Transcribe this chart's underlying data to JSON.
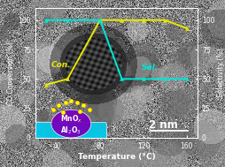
{
  "conv_x": [
    30,
    50,
    80,
    100,
    120,
    140,
    160
  ],
  "conv_y": [
    45,
    50,
    100,
    100,
    100,
    100,
    93
  ],
  "sel_x": [
    30,
    50,
    80,
    100,
    120,
    140,
    160
  ],
  "sel_y": [
    100,
    100,
    100,
    50,
    50,
    50,
    50
  ],
  "conv_color": "#e8e800",
  "sel_color": "#00e8d8",
  "conv_label": "Con.",
  "sel_label": "Sel.",
  "xlabel": "Temperature (°C)",
  "ylabel_left": "CO Conversion (%)",
  "ylabel_right": "Selectivity (%)",
  "xlim": [
    20,
    170
  ],
  "ylim": [
    0,
    110
  ],
  "yticks": [
    0,
    25,
    50,
    75,
    100
  ],
  "xticks": [
    40,
    80,
    120,
    160
  ],
  "mno_color": "#7700bb",
  "al2o3_color": "#00ccee",
  "scale_text": "2 nm",
  "tick_color": "white",
  "label_color": "white",
  "spine_color": "white"
}
